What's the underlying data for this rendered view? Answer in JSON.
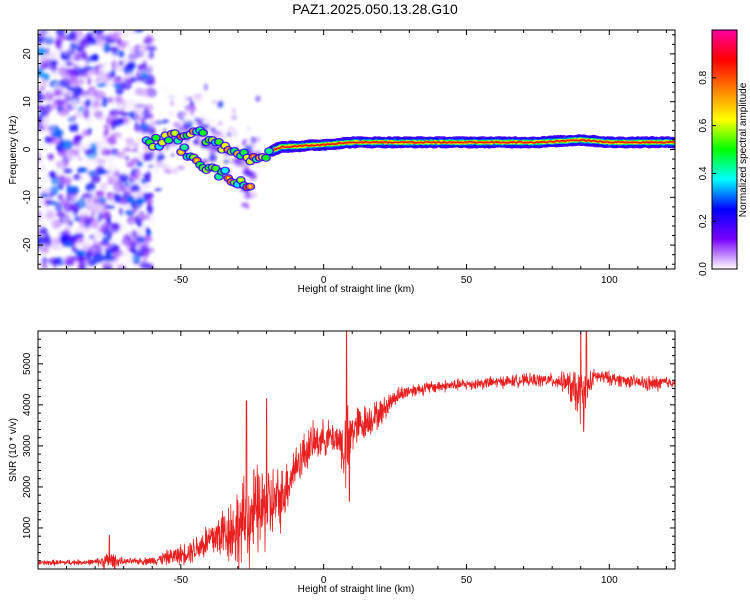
{
  "title": "PAZ1.2025.050.13.28.G10",
  "chart_data": [
    {
      "type": "heatmap",
      "name": "spectrogram",
      "xlabel": "Height of straight line (km)",
      "ylabel": "Frequency (Hz)",
      "xlim": [
        -100,
        123
      ],
      "ylim": [
        -25,
        25
      ],
      "xticks": [
        -50,
        0,
        50,
        100
      ],
      "yticks": [
        -20,
        -10,
        0,
        10,
        20
      ],
      "colorbar": {
        "label": "Normalized spectral amplitude",
        "range": [
          0,
          1
        ],
        "ticks": [
          "0.0",
          "0.2",
          "0.4",
          "0.6",
          "0.8"
        ],
        "tick_values": [
          0.0,
          0.2,
          0.4,
          0.6,
          0.8
        ],
        "colors": [
          "#ffffff",
          "#7a00ff",
          "#0000ff",
          "#00ffff",
          "#00ff00",
          "#ffff00",
          "#ff8000",
          "#ff0000",
          "#ff00a0"
        ]
      },
      "ridge": [
        {
          "x": -100,
          "f": null
        },
        {
          "x": -62,
          "f": 1.0,
          "note": "scattered noise below this height"
        },
        {
          "x": -45,
          "f": 3.5
        },
        {
          "x": -35,
          "f": 0.5
        },
        {
          "x": -25,
          "f": -2.0
        },
        {
          "x": -15,
          "f": 0.5
        },
        {
          "x": 0,
          "f": 1.0
        },
        {
          "x": 10,
          "f": 1.5
        },
        {
          "x": 25,
          "f": 1.5
        },
        {
          "x": 50,
          "f": 1.5
        },
        {
          "x": 75,
          "f": 1.5
        },
        {
          "x": 90,
          "f": 2.0
        },
        {
          "x": 100,
          "f": 1.5
        },
        {
          "x": 123,
          "f": 1.5
        }
      ],
      "secondary_branch": [
        {
          "x": -50,
          "f": 0
        },
        {
          "x": -40,
          "f": -4
        },
        {
          "x": -30,
          "f": -7
        },
        {
          "x": -25,
          "f": -8.5
        }
      ]
    },
    {
      "type": "line",
      "name": "snr",
      "xlabel": "Height of straight line (km)",
      "ylabel": "SNR (10 * v/v)",
      "xlim": [
        -100,
        123
      ],
      "ylim": [
        0,
        5800
      ],
      "xticks": [
        -50,
        0,
        50,
        100
      ],
      "yticks": [
        1000,
        2000,
        3000,
        4000,
        5000
      ],
      "color": "#e82020",
      "envelope": {
        "x": [
          -100,
          -80,
          -75,
          -70,
          -60,
          -50,
          -45,
          -40,
          -35,
          -30,
          -25,
          -20,
          -15,
          -10,
          -5,
          0,
          5,
          8,
          10,
          15,
          20,
          25,
          30,
          40,
          50,
          60,
          70,
          80,
          85,
          88,
          90,
          92,
          95,
          100,
          110,
          115,
          120,
          123
        ],
        "base": [
          150,
          170,
          200,
          180,
          200,
          350,
          500,
          700,
          900,
          1000,
          1300,
          1500,
          1700,
          2500,
          3000,
          3200,
          3200,
          2800,
          3400,
          3600,
          3800,
          4200,
          4350,
          4450,
          4500,
          4550,
          4600,
          4600,
          4550,
          4300,
          4200,
          4400,
          4700,
          4650,
          4550,
          4500,
          4550,
          4550
        ],
        "noise": [
          80,
          80,
          300,
          80,
          120,
          300,
          400,
          600,
          800,
          1200,
          1400,
          1300,
          900,
          700,
          600,
          500,
          500,
          1300,
          700,
          500,
          400,
          250,
          200,
          180,
          170,
          170,
          180,
          200,
          300,
          700,
          800,
          500,
          200,
          200,
          180,
          250,
          200,
          150
        ]
      },
      "notable_points": [
        {
          "x": -75,
          "y": 820
        },
        {
          "x": -27,
          "y": 4100
        },
        {
          "x": -20,
          "y": 4150
        },
        {
          "x": 8,
          "y": 5800
        },
        {
          "x": 9,
          "y": 1650
        },
        {
          "x": 90,
          "y": 5750
        },
        {
          "x": 92,
          "y": 5800
        },
        {
          "x": 91,
          "y": 3350
        }
      ]
    }
  ]
}
